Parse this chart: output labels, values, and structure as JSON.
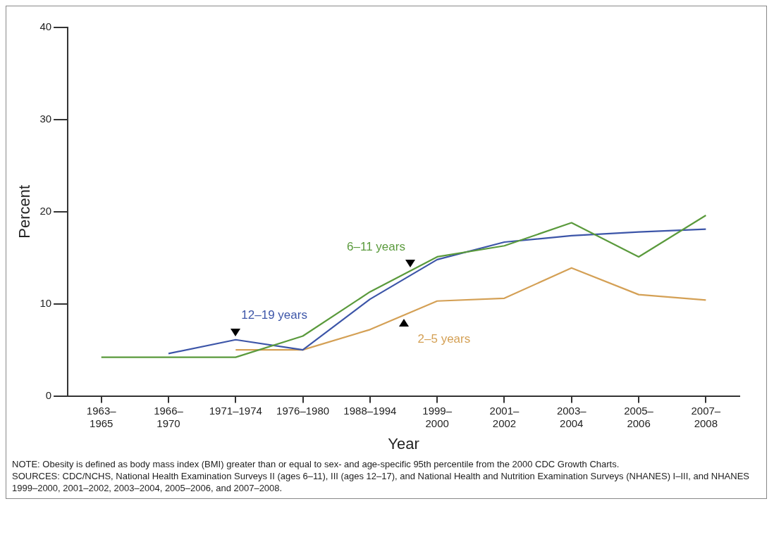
{
  "chart_data": {
    "type": "line",
    "xlabel": "Year",
    "ylabel": "Percent",
    "categories": [
      "1963–\n1965",
      "1966–\n1970",
      "1971–1974",
      "1976–1980",
      "1988–1994",
      "1999–\n2000",
      "2001–\n2002",
      "2003–\n2004",
      "2005–\n2006",
      "2007–\n2008"
    ],
    "ylim": [
      0,
      40
    ],
    "yticks": [
      0,
      10,
      20,
      30,
      40
    ],
    "grid": false,
    "legend": false,
    "marker": "none",
    "line_style": "solid",
    "series": [
      {
        "name": "6–11 years",
        "color": "#5a9a3c",
        "values": [
          4.2,
          null,
          4.2,
          6.5,
          11.3,
          15.1,
          16.3,
          18.8,
          15.1,
          19.6
        ]
      },
      {
        "name": "12–19 years",
        "color": "#3c55a8",
        "values": [
          null,
          4.6,
          6.1,
          5.0,
          10.5,
          14.8,
          16.7,
          17.4,
          17.8,
          18.1
        ]
      },
      {
        "name": "2–5 years",
        "color": "#d4a055",
        "values": [
          null,
          null,
          5.0,
          5.0,
          7.2,
          10.3,
          10.6,
          13.9,
          11.0,
          10.4
        ]
      }
    ],
    "annotations": [
      "NOTE: Obesity is defined as body mass index (BMI) greater than or equal to sex- and age-specific 95th percentile from the 2000 CDC Growth Charts.",
      "SOURCES: CDC/NCHS, National Health Examination Surveys II (ages 6–11), III (ages 12–17), and National Health and Nutrition Examination Surveys (NHANES) I–III, and NHANES 1999–2000, 2001–2002, 2003–2004, 2005–2006, and 2007–2008."
    ]
  }
}
